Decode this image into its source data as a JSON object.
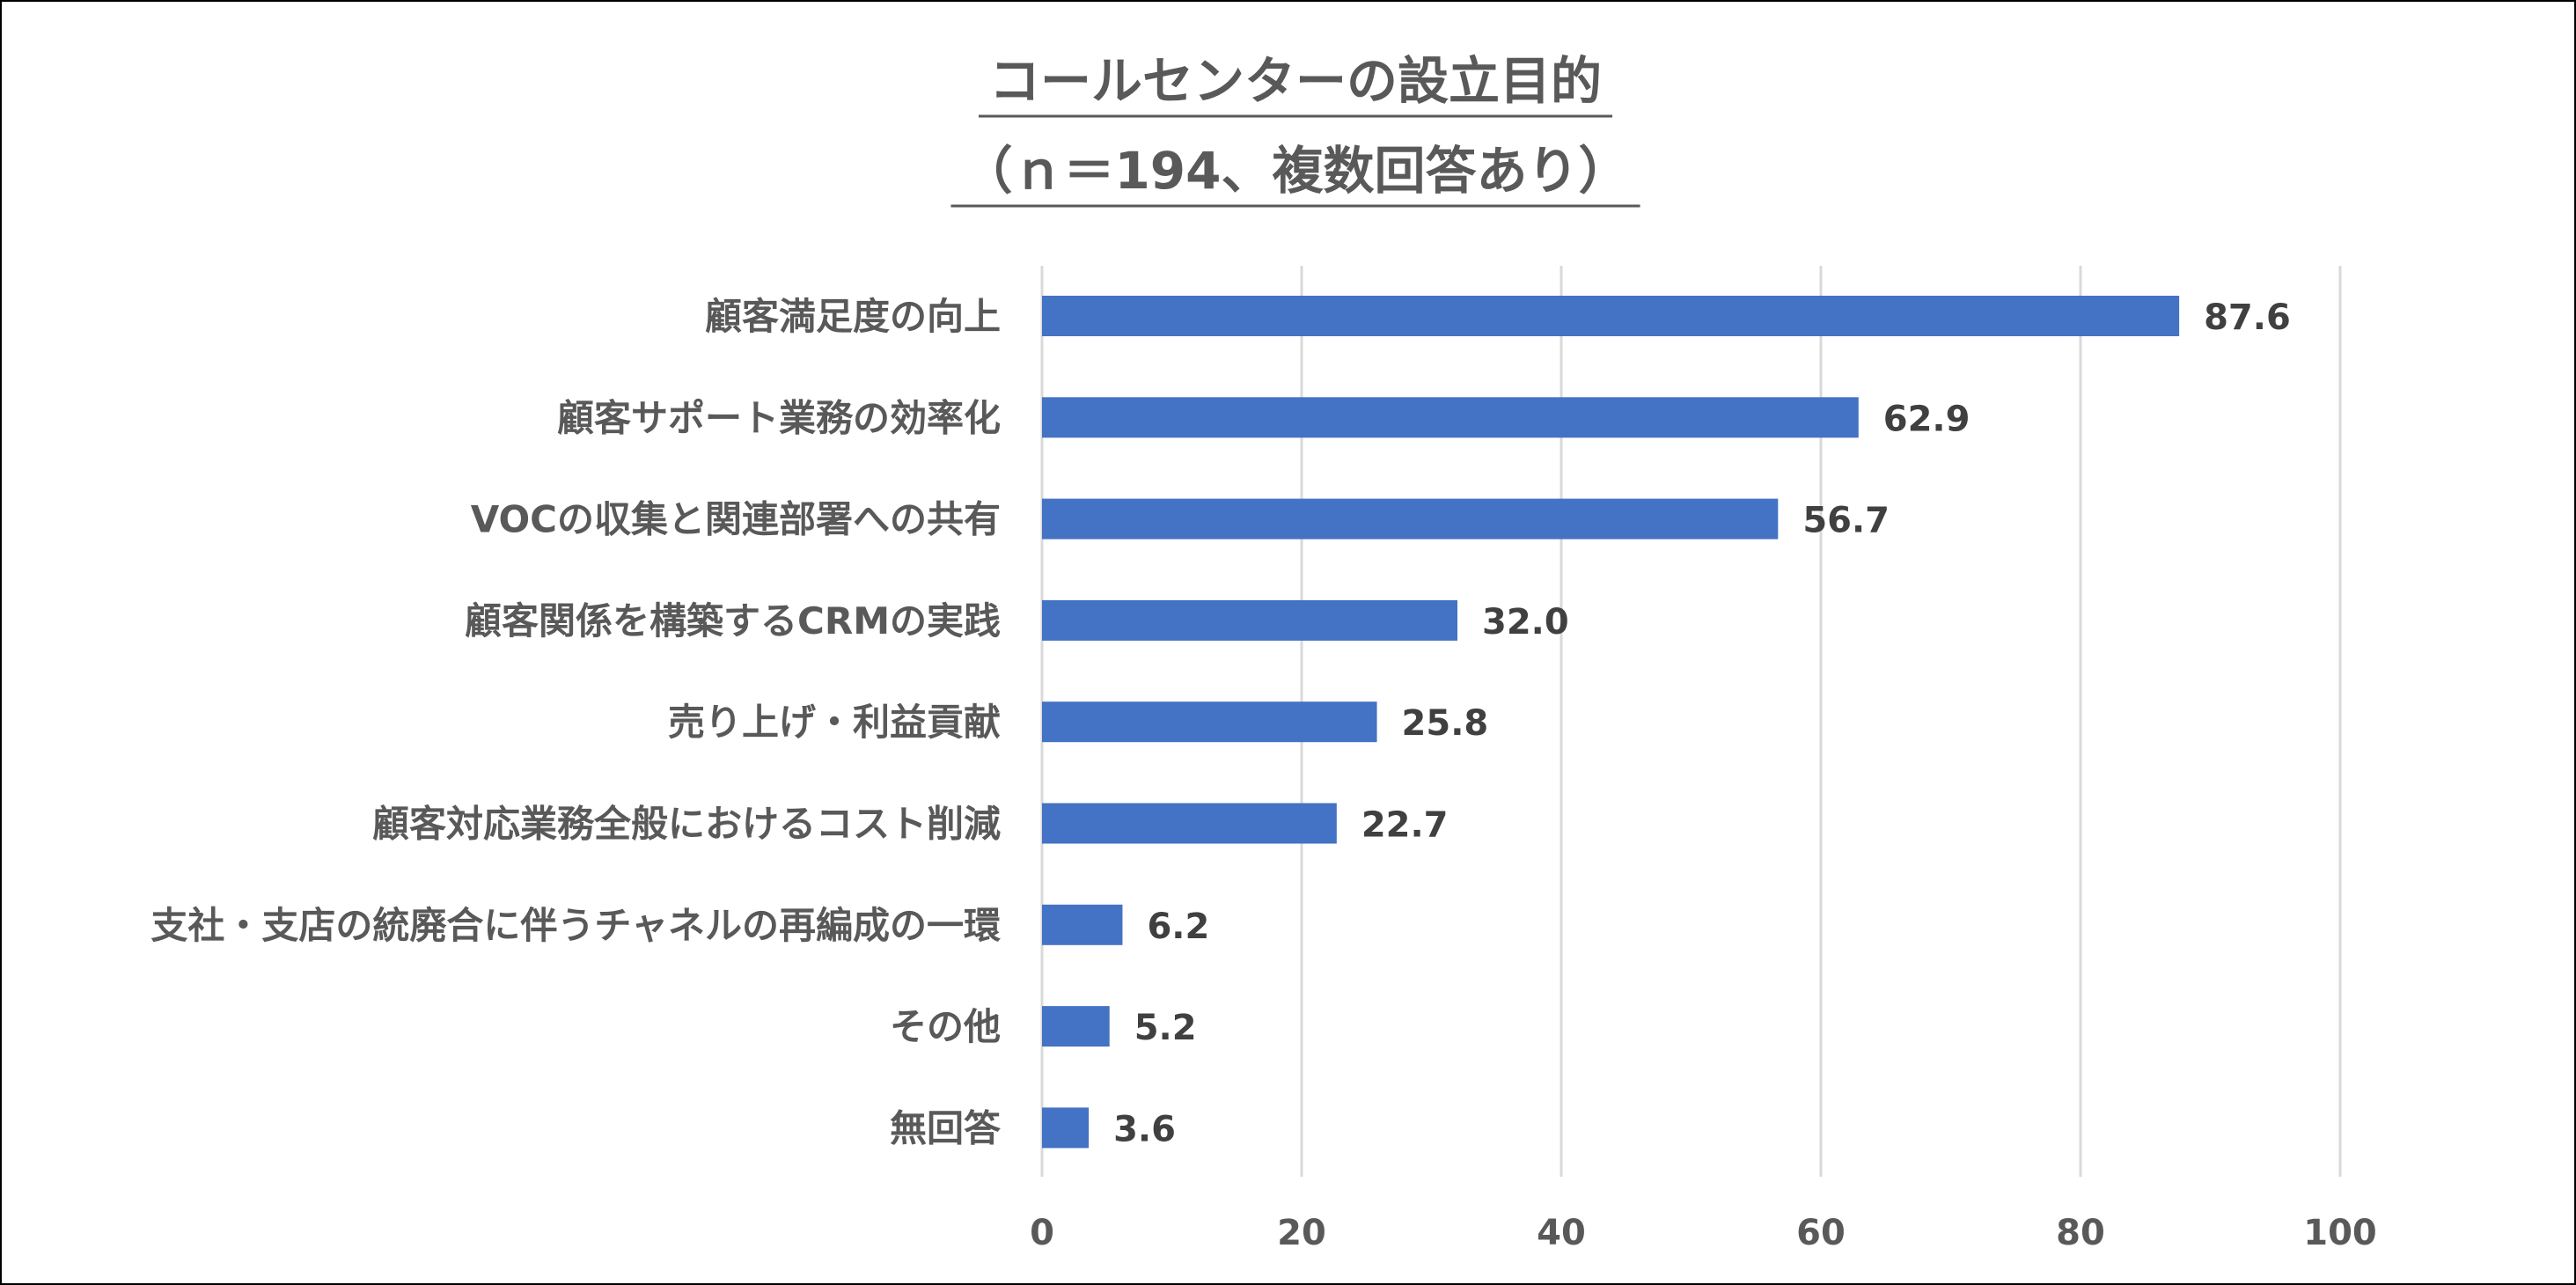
{
  "chart_data": {
    "type": "bar",
    "orientation": "horizontal",
    "title": "コールセンターの設立目的",
    "subtitle": "（ｎ＝194、複数回答あり）",
    "categories": [
      "顧客満足度の向上",
      "顧客サポート業務の効率化",
      "VOCの収集と関連部署への共有",
      "顧客関係を構築するCRMの実践",
      "売り上げ・利益貢献",
      "顧客対応業務全般におけるコスト削減",
      "支社・支店の統廃合に伴うチャネルの再編成の一環",
      "その他",
      "無回答"
    ],
    "values": [
      87.6,
      62.9,
      56.7,
      32.0,
      25.8,
      22.7,
      6.2,
      5.2,
      3.6
    ],
    "value_labels": [
      "87.6",
      "62.9",
      "56.7",
      "32.0",
      "25.8",
      "22.7",
      "6.2",
      "5.2",
      "3.6"
    ],
    "xlim": [
      0,
      100
    ],
    "ticks": [
      0,
      20,
      40,
      60,
      80,
      100
    ],
    "tick_labels": [
      "0",
      "20",
      "40",
      "60",
      "80",
      "100"
    ],
    "grid": true,
    "bar_color": "#4472C4",
    "grid_color": "#D9D9D9",
    "text_color": "#595959",
    "label_color": "#404040",
    "legend": "none"
  }
}
